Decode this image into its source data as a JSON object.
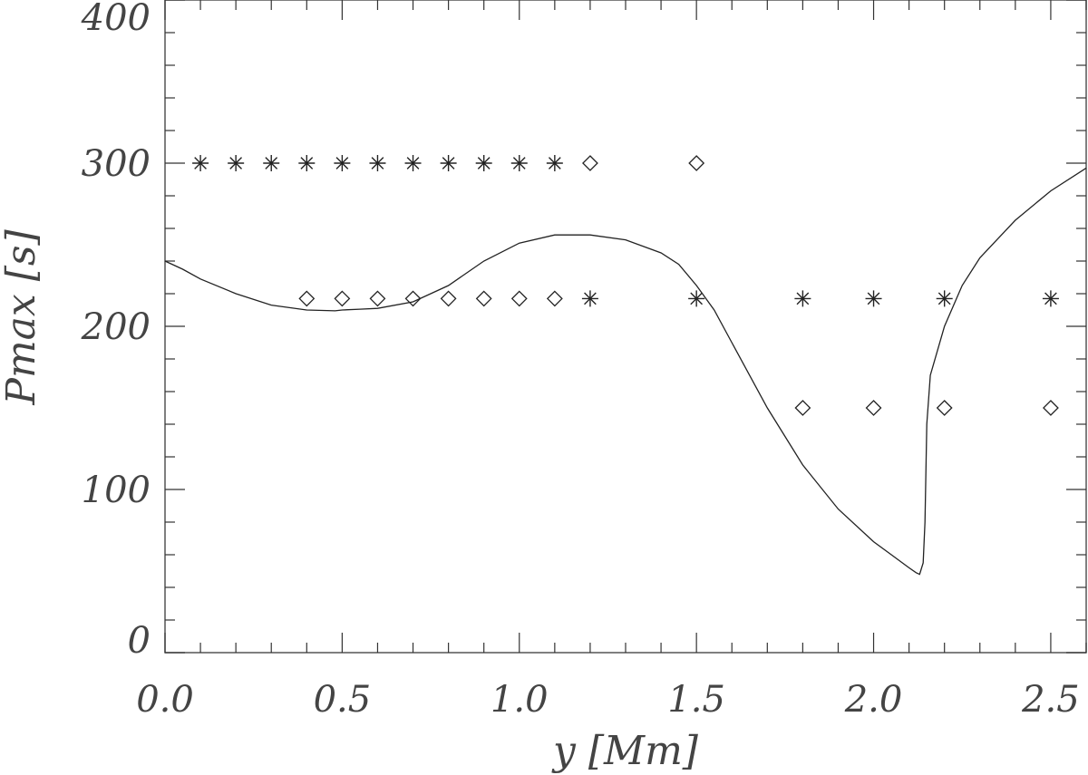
{
  "chart_data": {
    "type": "scatter",
    "title": "",
    "xlabel": "y [Mm]",
    "ylabel": "Pmax [s]",
    "xlim": [
      0.0,
      2.6
    ],
    "ylim": [
      0,
      400
    ],
    "grid": false,
    "x_ticks": [
      "0.0",
      "0.5",
      "1.0",
      "1.5",
      "2.0",
      "2.5"
    ],
    "y_ticks": [
      "0",
      "100",
      "200",
      "300",
      "400"
    ],
    "series": [
      {
        "marker": "asterisk",
        "points": [
          [
            0.1,
            300
          ],
          [
            0.2,
            300
          ],
          [
            0.3,
            300
          ],
          [
            0.4,
            300
          ],
          [
            0.5,
            300
          ],
          [
            0.6,
            300
          ],
          [
            0.7,
            300
          ],
          [
            0.8,
            300
          ],
          [
            0.9,
            300
          ],
          [
            1.0,
            300
          ],
          [
            1.1,
            300
          ],
          [
            1.2,
            217
          ],
          [
            1.5,
            217
          ],
          [
            1.8,
            217
          ],
          [
            2.0,
            217
          ],
          [
            2.2,
            217
          ],
          [
            2.5,
            217
          ]
        ]
      },
      {
        "marker": "diamond",
        "points": [
          [
            0.4,
            217
          ],
          [
            0.5,
            217
          ],
          [
            0.6,
            217
          ],
          [
            0.7,
            217
          ],
          [
            0.8,
            217
          ],
          [
            0.9,
            217
          ],
          [
            1.0,
            217
          ],
          [
            1.1,
            217
          ],
          [
            1.2,
            300
          ],
          [
            1.5,
            300
          ],
          [
            1.8,
            150
          ],
          [
            2.0,
            150
          ],
          [
            2.2,
            150
          ],
          [
            2.5,
            150
          ]
        ]
      },
      {
        "marker": "line",
        "points": [
          [
            0.0,
            240
          ],
          [
            0.05,
            235
          ],
          [
            0.1,
            229
          ],
          [
            0.2,
            220
          ],
          [
            0.3,
            213
          ],
          [
            0.4,
            210
          ],
          [
            0.48,
            209.5
          ],
          [
            0.5,
            210
          ],
          [
            0.55,
            210.5
          ],
          [
            0.6,
            211
          ],
          [
            0.7,
            215
          ],
          [
            0.8,
            225
          ],
          [
            0.9,
            240
          ],
          [
            1.0,
            251
          ],
          [
            1.1,
            256
          ],
          [
            1.2,
            256
          ],
          [
            1.3,
            253
          ],
          [
            1.4,
            245
          ],
          [
            1.45,
            238
          ],
          [
            1.5,
            225
          ],
          [
            1.55,
            210
          ],
          [
            1.6,
            190
          ],
          [
            1.7,
            150
          ],
          [
            1.8,
            115
          ],
          [
            1.9,
            88
          ],
          [
            2.0,
            68
          ],
          [
            2.05,
            60
          ],
          [
            2.1,
            52
          ],
          [
            2.12,
            49
          ],
          [
            2.13,
            48
          ],
          [
            2.14,
            55
          ],
          [
            2.145,
            80
          ],
          [
            2.15,
            140
          ],
          [
            2.16,
            170
          ],
          [
            2.2,
            200
          ],
          [
            2.25,
            225
          ],
          [
            2.3,
            242
          ],
          [
            2.4,
            265
          ],
          [
            2.5,
            283
          ],
          [
            2.6,
            297
          ]
        ]
      }
    ]
  }
}
